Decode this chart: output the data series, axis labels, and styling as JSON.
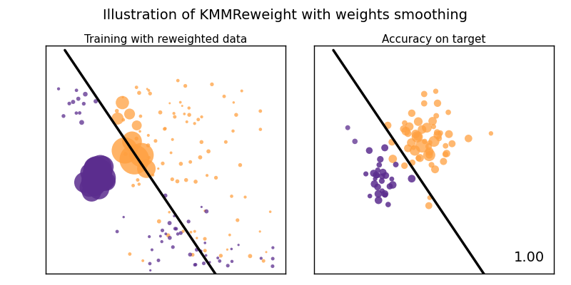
{
  "title": "Illustration of KMMReweight with weights smoothing",
  "subtitle_left": "Training with reweighted data",
  "subtitle_right": "Accuracy on target",
  "accuracy_text": "1.00",
  "orange_color": "#FFA040",
  "purple_color": "#5B2D8E",
  "bg_color": "#ffffff",
  "seed": 7,
  "title_fontsize": 14,
  "subtitle_fontsize": 11,
  "accuracy_fontsize": 14
}
